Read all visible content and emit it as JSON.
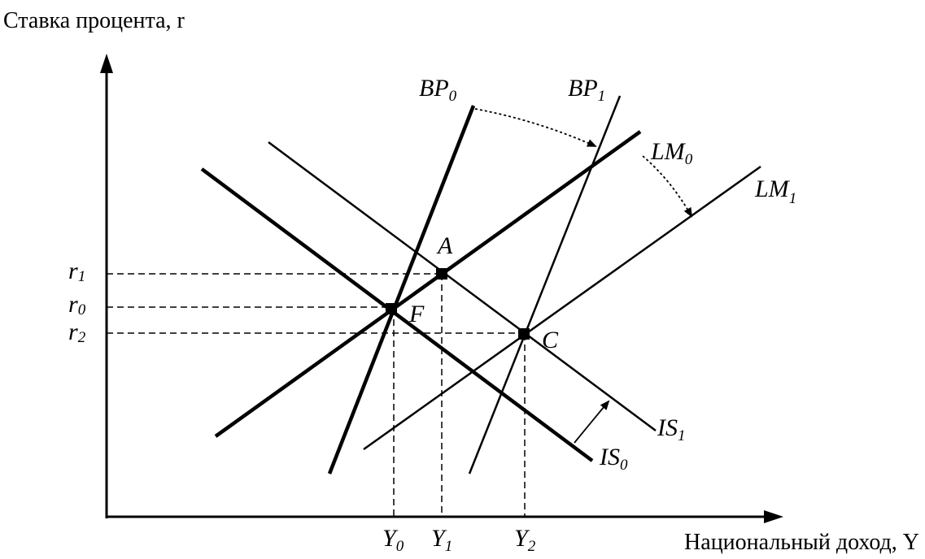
{
  "y_axis_label": "Ставка процента, r",
  "x_axis_label": "Национальный доход, Y",
  "curves": [
    {
      "name": "BP",
      "index": "0"
    },
    {
      "name": "BP",
      "index": "1"
    },
    {
      "name": "LM",
      "index": "0"
    },
    {
      "name": "LM",
      "index": "1"
    },
    {
      "name": "IS",
      "index": "0"
    },
    {
      "name": "IS",
      "index": "1"
    }
  ],
  "points": [
    "A",
    "F",
    "C"
  ],
  "rate_ticks": [
    {
      "name": "r",
      "index": "1"
    },
    {
      "name": "r",
      "index": "0"
    },
    {
      "name": "r",
      "index": "2"
    }
  ],
  "income_ticks": [
    {
      "name": "Y",
      "index": "0"
    },
    {
      "name": "Y",
      "index": "1"
    },
    {
      "name": "Y",
      "index": "2"
    }
  ]
}
